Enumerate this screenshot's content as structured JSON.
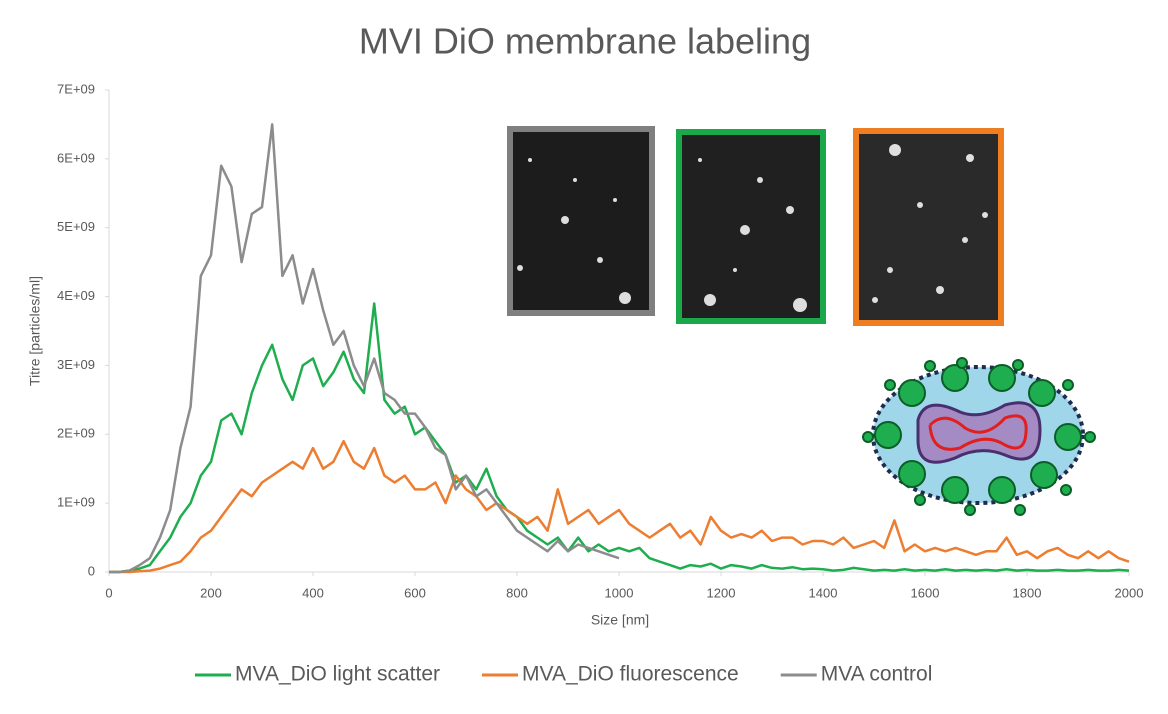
{
  "chart_data": {
    "type": "line",
    "title": "MVI  DiO membrane labeling",
    "x_label": "Size [nm]",
    "y_label": "Titre [particles/ml]",
    "x": [
      0,
      20,
      40,
      60,
      80,
      100,
      120,
      140,
      160,
      180,
      200,
      220,
      240,
      260,
      280,
      300,
      320,
      340,
      360,
      380,
      400,
      420,
      440,
      460,
      480,
      500,
      520,
      540,
      560,
      580,
      600,
      620,
      640,
      660,
      680,
      700,
      720,
      740,
      760,
      780,
      800,
      820,
      840,
      860,
      880,
      900,
      920,
      940,
      960,
      980,
      1000,
      1020,
      1040,
      1060,
      1080,
      1100,
      1120,
      1140,
      1160,
      1180,
      1200,
      1220,
      1240,
      1260,
      1280,
      1300,
      1320,
      1340,
      1360,
      1380,
      1400,
      1420,
      1440,
      1460,
      1480,
      1500,
      1520,
      1540,
      1560,
      1580,
      1600,
      1620,
      1640,
      1660,
      1680,
      1700,
      1720,
      1740,
      1760,
      1780,
      1800,
      1820,
      1840,
      1860,
      1880,
      1900,
      1920,
      1940,
      1960,
      1980,
      2000
    ],
    "xlim": [
      0,
      2000
    ],
    "xticks": [
      0,
      200,
      400,
      600,
      800,
      1000,
      1200,
      1400,
      1600,
      1800,
      2000
    ],
    "ylim": [
      0,
      7000000000.0
    ],
    "yticks": [
      {
        "value": 0,
        "label": "0"
      },
      {
        "value": 1000000000.0,
        "label": "1E+09"
      },
      {
        "value": 2000000000.0,
        "label": "2E+09"
      },
      {
        "value": 3000000000.0,
        "label": "3E+09"
      },
      {
        "value": 4000000000.0,
        "label": "4E+09"
      },
      {
        "value": 5000000000.0,
        "label": "5E+09"
      },
      {
        "value": 6000000000.0,
        "label": "6E+09"
      },
      {
        "value": 7000000000.0,
        "label": "7E+09"
      }
    ],
    "series": [
      {
        "name": "MVA_DiO light scatter",
        "color": "#1fae4f",
        "values": [
          0,
          0,
          20000000.0,
          50000000.0,
          100000000.0,
          300000000.0,
          500000000.0,
          800000000.0,
          1000000000.0,
          1400000000.0,
          1600000000.0,
          2200000000.0,
          2300000000.0,
          2000000000.0,
          2600000000.0,
          3000000000.0,
          3300000000.0,
          2800000000.0,
          2500000000.0,
          3000000000.0,
          3100000000.0,
          2700000000.0,
          2900000000.0,
          3200000000.0,
          2800000000.0,
          2600000000.0,
          3900000000.0,
          2500000000.0,
          2300000000.0,
          2400000000.0,
          2000000000.0,
          2100000000.0,
          1900000000.0,
          1700000000.0,
          1300000000.0,
          1400000000.0,
          1200000000.0,
          1500000000.0,
          1100000000.0,
          900000000.0,
          800000000.0,
          600000000.0,
          500000000.0,
          400000000.0,
          500000000.0,
          300000000.0,
          500000000.0,
          300000000.0,
          400000000.0,
          300000000.0,
          350000000.0,
          300000000.0,
          350000000.0,
          200000000.0,
          150000000.0,
          100000000.0,
          50000000.0,
          100000000.0,
          80000000.0,
          120000000.0,
          50000000.0,
          100000000.0,
          80000000.0,
          50000000.0,
          100000000.0,
          60000000.0,
          50000000.0,
          70000000.0,
          40000000.0,
          50000000.0,
          40000000.0,
          20000000.0,
          30000000.0,
          60000000.0,
          40000000.0,
          20000000.0,
          30000000.0,
          20000000.0,
          40000000.0,
          20000000.0,
          30000000.0,
          20000000.0,
          40000000.0,
          20000000.0,
          30000000.0,
          20000000.0,
          30000000.0,
          20000000.0,
          40000000.0,
          20000000.0,
          30000000.0,
          20000000.0,
          20000000.0,
          30000000.0,
          20000000.0,
          20000000.0,
          30000000.0,
          20000000.0,
          20000000.0,
          30000000.0,
          20000000.0
        ]
      },
      {
        "name": "MVA_DiO fluorescence",
        "color": "#ed7d31",
        "values": [
          0,
          0,
          0,
          10000000.0,
          20000000.0,
          50000000.0,
          100000000.0,
          150000000.0,
          300000000.0,
          500000000.0,
          600000000.0,
          800000000.0,
          1000000000.0,
          1200000000.0,
          1100000000.0,
          1300000000.0,
          1400000000.0,
          1500000000.0,
          1600000000.0,
          1500000000.0,
          1800000000.0,
          1500000000.0,
          1600000000.0,
          1900000000.0,
          1600000000.0,
          1500000000.0,
          1800000000.0,
          1400000000.0,
          1300000000.0,
          1400000000.0,
          1200000000.0,
          1200000000.0,
          1300000000.0,
          1000000000.0,
          1400000000.0,
          1200000000.0,
          1100000000.0,
          900000000.0,
          1000000000.0,
          900000000.0,
          800000000.0,
          700000000.0,
          800000000.0,
          600000000.0,
          1200000000.0,
          700000000.0,
          800000000.0,
          900000000.0,
          700000000.0,
          800000000.0,
          900000000.0,
          700000000.0,
          600000000.0,
          500000000.0,
          600000000.0,
          700000000.0,
          500000000.0,
          600000000.0,
          400000000.0,
          800000000.0,
          600000000.0,
          500000000.0,
          550000000.0,
          500000000.0,
          600000000.0,
          450000000.0,
          500000000.0,
          500000000.0,
          400000000.0,
          450000000.0,
          450000000.0,
          400000000.0,
          500000000.0,
          350000000.0,
          400000000.0,
          450000000.0,
          350000000.0,
          750000000.0,
          300000000.0,
          400000000.0,
          300000000.0,
          350000000.0,
          300000000.0,
          350000000.0,
          300000000.0,
          250000000.0,
          300000000.0,
          300000000.0,
          500000000.0,
          250000000.0,
          300000000.0,
          200000000.0,
          300000000.0,
          350000000.0,
          250000000.0,
          200000000.0,
          300000000.0,
          200000000.0,
          300000000.0,
          200000000.0,
          150000000.0
        ]
      },
      {
        "name": "MVA control",
        "color": "#8c8c8c",
        "values": [
          0,
          0,
          20000000.0,
          100000000.0,
          200000000.0,
          500000000.0,
          900000000.0,
          1800000000.0,
          2400000000.0,
          4300000000.0,
          4600000000.0,
          5900000000.0,
          5600000000.0,
          4500000000.0,
          5200000000.0,
          5300000000.0,
          6500000000.0,
          4300000000.0,
          4600000000.0,
          3900000000.0,
          4400000000.0,
          3800000000.0,
          3300000000.0,
          3500000000.0,
          3000000000.0,
          2700000000.0,
          3100000000.0,
          2600000000.0,
          2500000000.0,
          2300000000.0,
          2300000000.0,
          2100000000.0,
          1800000000.0,
          1700000000.0,
          1200000000.0,
          1400000000.0,
          1100000000.0,
          1200000000.0,
          1000000000.0,
          800000000.0,
          600000000.0,
          500000000.0,
          400000000.0,
          300000000.0,
          450000000.0,
          300000000.0,
          400000000.0,
          350000000.0,
          300000000.0,
          250000000.0,
          200000000.0,
          null,
          null,
          null,
          null,
          null,
          null,
          null,
          null,
          null,
          null,
          null,
          null,
          null,
          null,
          null,
          null,
          null,
          null,
          null,
          null,
          null,
          null,
          null,
          null,
          null,
          null,
          null,
          null,
          null,
          null,
          null,
          null,
          null,
          null,
          null,
          null,
          null,
          null,
          null,
          null,
          null,
          null,
          null,
          null,
          null,
          null,
          null,
          null,
          null,
          null
        ]
      }
    ],
    "grid": false,
    "legend": "bottom"
  }
}
